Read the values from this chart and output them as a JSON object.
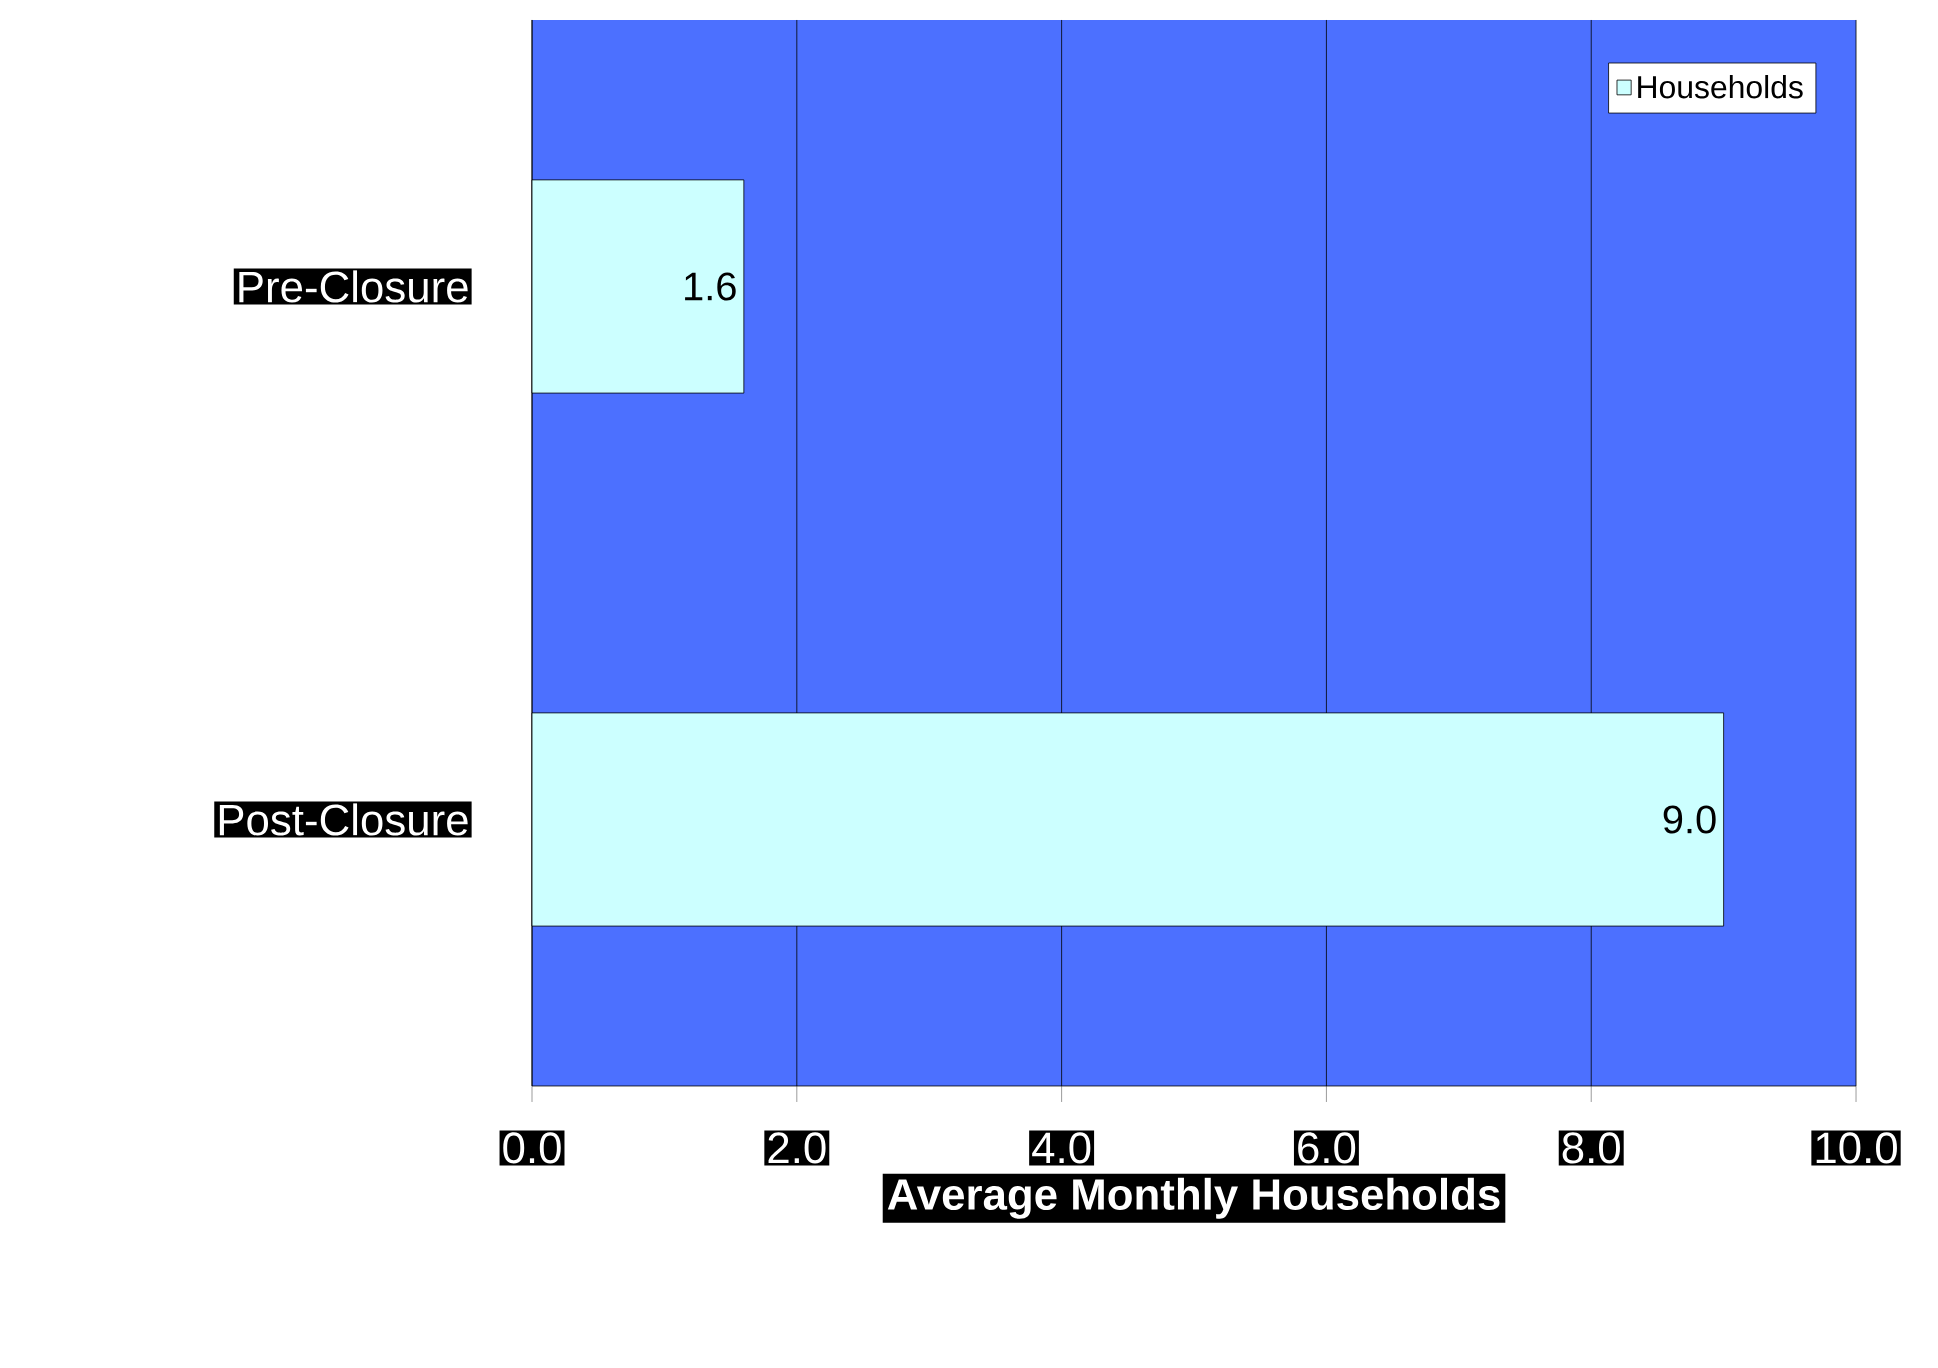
{
  "chart_data": {
    "type": "bar",
    "orientation": "horizontal",
    "xlabel": "Average Monthly Households",
    "categories": [
      "Pre-Closure",
      "Post-Closure"
    ],
    "series": [
      {
        "name": "Households",
        "color": "#ccffff",
        "values": [
          1.6,
          9.0
        ],
        "value_labels": [
          "1.6",
          "9.0"
        ]
      }
    ],
    "xlim": [
      0,
      10
    ],
    "xticks": [
      {
        "value": 0,
        "label": "0.0"
      },
      {
        "value": 2,
        "label": "2.0"
      },
      {
        "value": 4,
        "label": "4.0"
      },
      {
        "value": 6,
        "label": "6.0"
      },
      {
        "value": 8,
        "label": "8.0"
      },
      {
        "value": 10,
        "label": "10.0"
      }
    ],
    "grid": "x",
    "legend": "top right"
  }
}
